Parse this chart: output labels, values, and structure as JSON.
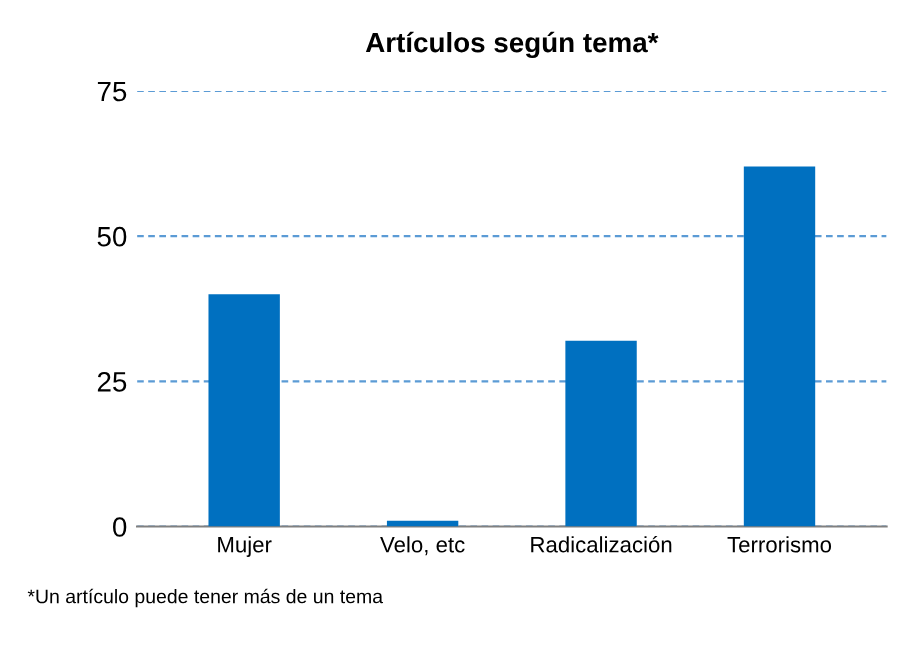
{
  "chart_data": {
    "type": "bar",
    "title": "Artículos según tema*",
    "categories": [
      "Mujer",
      "Velo, etc",
      "Radicalización",
      "Terrorismo"
    ],
    "values": [
      40,
      1,
      32,
      62
    ],
    "color": "#0070c0",
    "ylim": [
      0,
      75
    ],
    "yticks": [
      0,
      25,
      50,
      75
    ],
    "grid": "y",
    "annotations": [
      "*Un artículo puede tener más de un tema"
    ]
  }
}
